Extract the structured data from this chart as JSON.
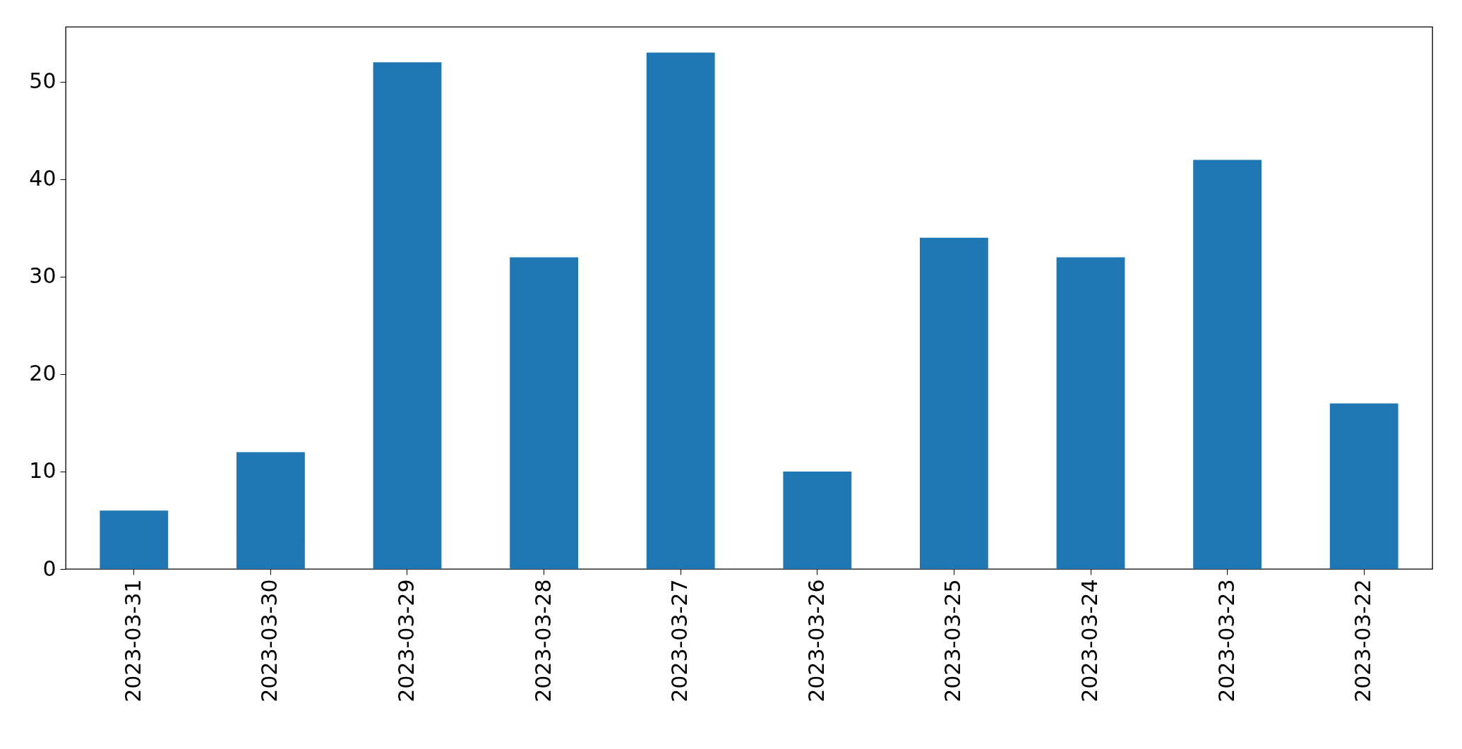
{
  "chart_data": {
    "type": "bar",
    "categories": [
      "2023-03-31",
      "2023-03-30",
      "2023-03-29",
      "2023-03-28",
      "2023-03-27",
      "2023-03-26",
      "2023-03-25",
      "2023-03-24",
      "2023-03-23",
      "2023-03-22"
    ],
    "values": [
      6,
      12,
      52,
      32,
      53,
      10,
      34,
      32,
      42,
      17
    ],
    "color": "#1f77b4",
    "ylim": [
      0,
      55.65
    ],
    "yticks": [
      0,
      10,
      20,
      30,
      40,
      50
    ],
    "grid": false
  }
}
